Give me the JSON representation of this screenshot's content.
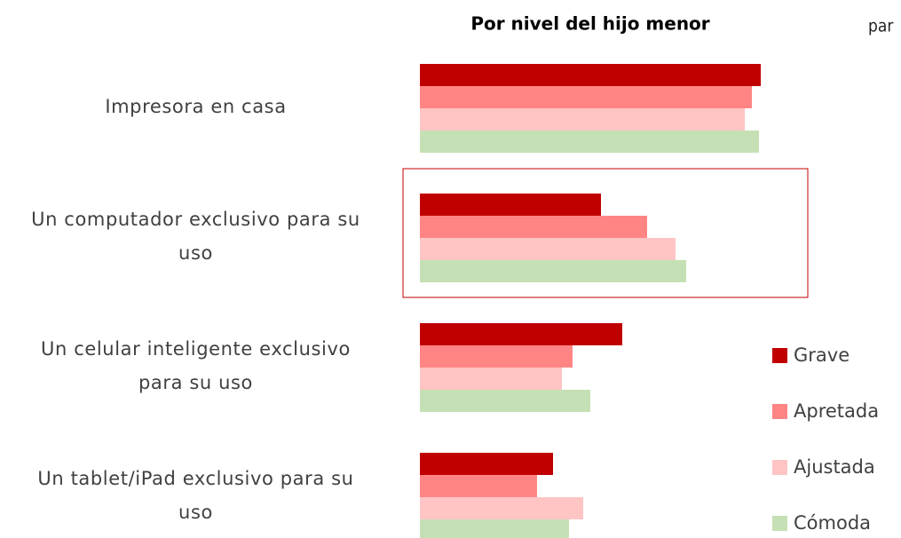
{
  "chart_data": {
    "type": "hbar",
    "title": "Por  nivel del hijo menor",
    "note": "par",
    "categories": [
      "Impresora en casa",
      "Un computador exclusivo para su\nuso",
      "Un celular inteligente exclusivo\npara su uso",
      "Un tablet/iPad exclusivo para su\nuso"
    ],
    "series": [
      {
        "name": "Grave",
        "color": "#c00000",
        "values": [
          96,
          51,
          57,
          37.5
        ]
      },
      {
        "name": "Apretada",
        "color": "#ff8585",
        "values": [
          93.5,
          64,
          43,
          33
        ]
      },
      {
        "name": "Ajustada",
        "color": "#ffc4c4",
        "values": [
          91.5,
          72,
          40,
          46
        ]
      },
      {
        "name": "Cómoda",
        "color": "#c5e0b4",
        "values": [
          95.5,
          75,
          48,
          42
        ]
      }
    ],
    "xlim": [
      0,
      100
    ],
    "highlight": 1,
    "legend": "right"
  }
}
